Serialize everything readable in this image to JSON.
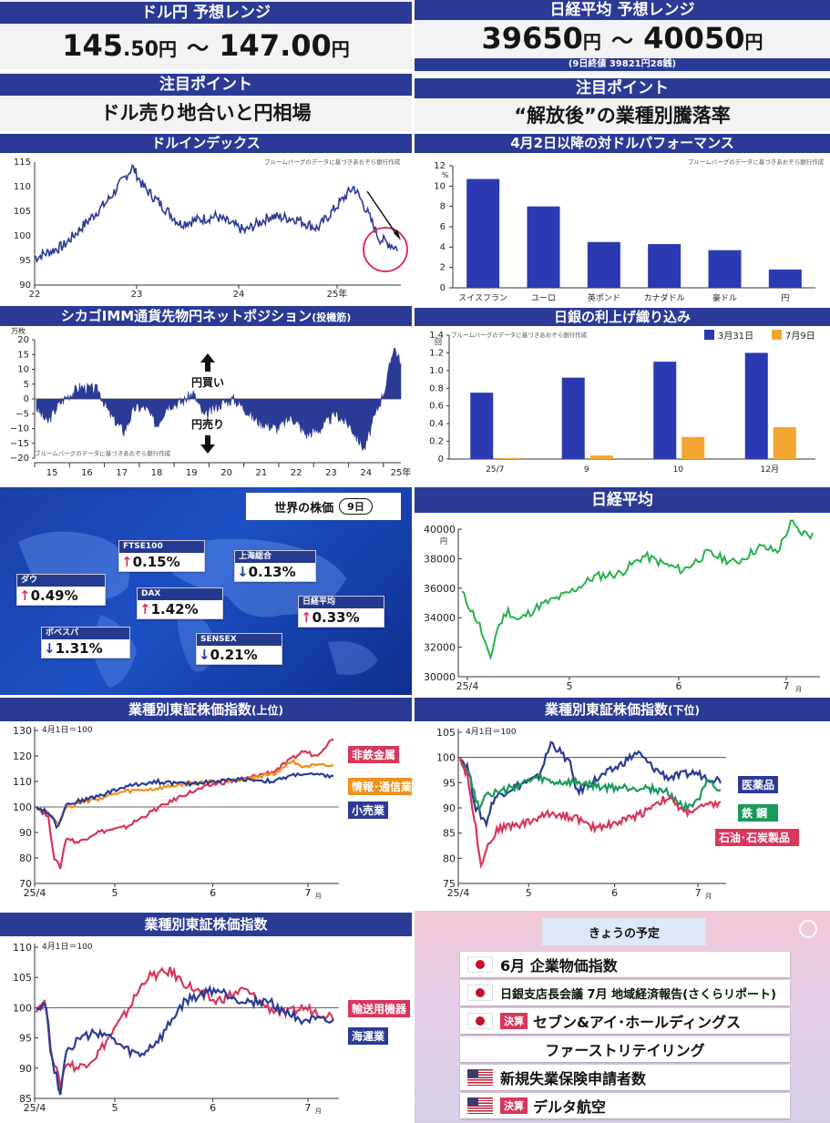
{
  "p1": {
    "title": "ドル円 予想レンジ",
    "lo_big": "145",
    "lo_small": ".50",
    "unit1": "円",
    "tilde": "～",
    "hi_big": "147",
    "hi_small": ".00",
    "unit2": "円"
  },
  "p2": {
    "title": "日経平均 予想レンジ",
    "lo": "39650",
    "unit1": "円",
    "tilde": "～",
    "hi": "40050",
    "unit2": "円",
    "note": "(9日終値 39821円28銭)"
  },
  "p3": {
    "title": "注目ポイント",
    "text": "ドル売り地合いと円相場"
  },
  "p4": {
    "title": "注目ポイント",
    "text": "“解放後”の業種別騰落率"
  },
  "source_note": "ブルームバーグのデータに基づきあおぞら銀行作成",
  "dxy": {
    "title": "ドルインデックス",
    "yticks": [
      "115",
      "110",
      "105",
      "100",
      "95",
      "90"
    ],
    "xticks": [
      "22",
      "23",
      "24",
      "25年"
    ]
  },
  "perf": {
    "title": "4月2日以降の対ドルパフォーマンス",
    "ylabel": "%",
    "yticks": [
      "12",
      "10",
      "8",
      "6",
      "4",
      "2",
      "0"
    ],
    "chart_data": {
      "type": "bar",
      "categories": [
        "スイスフラン",
        "ユーロ",
        "英ポンド",
        "カナダドル",
        "豪ドル",
        "円"
      ],
      "values": [
        10.7,
        8.0,
        4.5,
        4.3,
        3.7,
        1.8
      ],
      "ylim": [
        0,
        12
      ],
      "ylabel": "%"
    }
  },
  "imm": {
    "title": "シカゴIMM通貨先物円ネットポジション",
    "title_suffix": "(投機筋)",
    "unit": "万枚",
    "yticks": [
      "20",
      "15",
      "10",
      "5",
      "0",
      "−5",
      "−10",
      "−15",
      "−20"
    ],
    "xticks": [
      "15",
      "16",
      "17",
      "18",
      "19",
      "20",
      "21",
      "22",
      "23",
      "24",
      "25年"
    ],
    "buy": "円買い",
    "sell": "円売り"
  },
  "boj": {
    "title": "日銀の利上げ織り込み",
    "unit": "回",
    "yticks": [
      "1.4",
      "1.2",
      "1.0",
      "0.8",
      "0.6",
      "0.4",
      "0.2",
      "0"
    ],
    "legend": [
      "3月31日",
      "7月9日"
    ],
    "colors": [
      "#2b3ab0",
      "#f2a531"
    ],
    "chart_data": {
      "type": "bar",
      "categories": [
        "25/7",
        "9",
        "10",
        "12月"
      ],
      "series": [
        {
          "name": "3月31日",
          "values": [
            0.75,
            0.92,
            1.1,
            1.2
          ]
        },
        {
          "name": "7月9日",
          "values": [
            0.01,
            0.04,
            0.25,
            0.36
          ]
        }
      ],
      "ylim": [
        0,
        1.4
      ]
    }
  },
  "world": {
    "title": "世界の株価",
    "day": "9日",
    "items": [
      {
        "name": "FTSE100",
        "val": "0.15%",
        "dir": "up"
      },
      {
        "name": "上海総合",
        "val": "0.13%",
        "dir": "down"
      },
      {
        "name": "ダウ",
        "val": "0.49%",
        "dir": "up"
      },
      {
        "name": "DAX",
        "val": "1.42%",
        "dir": "up"
      },
      {
        "name": "日経平均",
        "val": "0.33%",
        "dir": "up"
      },
      {
        "name": "ボベスパ",
        "val": "1.31%",
        "dir": "down"
      },
      {
        "name": "SENSEX",
        "val": "0.21%",
        "dir": "down"
      }
    ]
  },
  "nikkei": {
    "title": "日経平均",
    "unit": "円",
    "yticks": [
      "40000",
      "38000",
      "36000",
      "34000",
      "32000",
      "30000"
    ],
    "xticks": [
      "25/4",
      "5",
      "6",
      "7"
    ],
    "xunit": "月"
  },
  "sect_top": {
    "title": "業種別東証株価指数",
    "title_suffix": "(上位)",
    "base": "4月1日＝100",
    "yticks": [
      "130",
      "120",
      "110",
      "100",
      "90",
      "80",
      "70"
    ],
    "xticks": [
      "25/4",
      "5",
      "6",
      "7"
    ],
    "xunit": "月",
    "labels": [
      "非鉄金属",
      "情報･通信業",
      "小売業"
    ],
    "colors": [
      "#d8365a",
      "#ef8f1c",
      "#2b3a94"
    ]
  },
  "sect_bot": {
    "title": "業種別東証株価指数",
    "title_suffix": "(下位)",
    "base": "4月1日＝100",
    "yticks": [
      "105",
      "100",
      "95",
      "90",
      "85",
      "80",
      "75"
    ],
    "xticks": [
      "25/4",
      "5",
      "6",
      "7"
    ],
    "xunit": "月",
    "labels": [
      "医薬品",
      "鉄 鋼",
      "石油･石炭製品"
    ],
    "colors": [
      "#2b3a94",
      "#1a9a5a",
      "#d8365a"
    ]
  },
  "sect_x": {
    "title": "業種別東証株価指数",
    "base": "4月1日＝100",
    "yticks": [
      "110",
      "105",
      "100",
      "95",
      "90",
      "85"
    ],
    "xticks": [
      "25/4",
      "5",
      "6",
      "7"
    ],
    "xunit": "月",
    "labels": [
      "輸送用機器",
      "海運業"
    ],
    "colors": [
      "#d8365a",
      "#2b3a94"
    ]
  },
  "today": {
    "title": "きょうの予定",
    "items": [
      {
        "flag": "jp",
        "badge": "",
        "text": "6月 企業物価指数"
      },
      {
        "flag": "jp",
        "badge": "",
        "text": "日銀支店長会議 7月 地域経済報告(さくらリポート)"
      },
      {
        "flag": "jp",
        "badge": "決算",
        "text": "セブン&アイ･ホールディングス"
      },
      {
        "flag": "",
        "badge": "",
        "text": "ファーストリテイリング"
      },
      {
        "flag": "us",
        "badge": "",
        "text": "新規失業保険申請者数"
      },
      {
        "flag": "us",
        "badge": "決算",
        "text": "デルタ航空"
      }
    ]
  }
}
